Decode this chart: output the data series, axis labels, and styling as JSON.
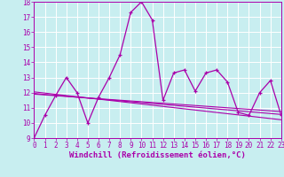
{
  "xlabel": "Windchill (Refroidissement éolien,°C)",
  "ylabel": "",
  "background_color": "#c8eef0",
  "grid_color": "#ffffff",
  "line_color": "#aa00aa",
  "x_values": [
    0,
    1,
    2,
    3,
    4,
    5,
    6,
    7,
    8,
    9,
    10,
    11,
    12,
    13,
    14,
    15,
    16,
    17,
    18,
    19,
    20,
    21,
    22,
    23
  ],
  "y_main": [
    9,
    10.5,
    11.8,
    13,
    12,
    10,
    11.7,
    13,
    14.5,
    17.3,
    18.0,
    16.8,
    11.5,
    13.3,
    13.5,
    12.1,
    13.3,
    13.5,
    12.7,
    10.7,
    10.5,
    12.0,
    12.8,
    10.5
  ],
  "y_trend1": [
    11.9,
    11.85,
    11.8,
    11.75,
    11.7,
    11.65,
    11.6,
    11.55,
    11.5,
    11.45,
    11.4,
    11.35,
    11.3,
    11.25,
    11.2,
    11.15,
    11.1,
    11.05,
    11.0,
    10.95,
    10.9,
    10.85,
    10.8,
    10.75
  ],
  "y_trend2": [
    11.95,
    11.88,
    11.82,
    11.76,
    11.7,
    11.64,
    11.58,
    11.52,
    11.46,
    11.4,
    11.34,
    11.28,
    11.22,
    11.16,
    11.1,
    11.04,
    10.98,
    10.92,
    10.86,
    10.8,
    10.74,
    10.68,
    10.62,
    10.56
  ],
  "y_trend3": [
    12.05,
    11.97,
    11.89,
    11.81,
    11.73,
    11.65,
    11.57,
    11.49,
    11.41,
    11.33,
    11.25,
    11.17,
    11.09,
    11.01,
    10.93,
    10.85,
    10.77,
    10.69,
    10.61,
    10.53,
    10.45,
    10.37,
    10.29,
    10.21
  ],
  "ylim": [
    9,
    18
  ],
  "xlim": [
    0,
    23
  ],
  "ytick_step": 1,
  "xtick_step": 1,
  "tick_fontsize": 5.5,
  "xlabel_fontsize": 6.5
}
